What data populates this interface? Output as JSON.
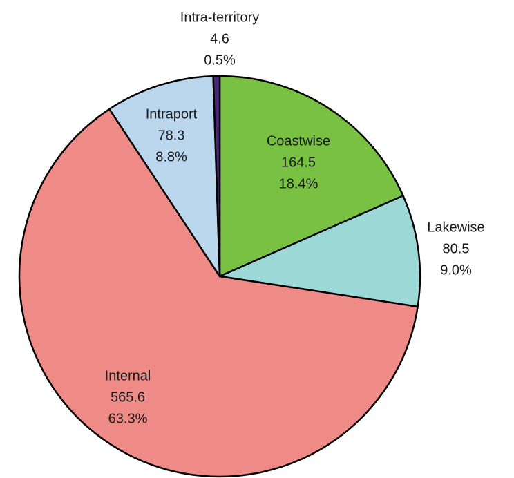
{
  "chart_data": {
    "type": "pie",
    "categories": [
      "Coastwise",
      "Lakewise",
      "Internal",
      "Intraport",
      "Intra-territory"
    ],
    "values": [
      164.5,
      80.5,
      565.6,
      78.3,
      4.6
    ],
    "percent_labels": [
      "18.4%",
      "9.0%",
      "63.3%",
      "8.8%",
      "0.5%"
    ],
    "colors": [
      "#79c142",
      "#9cd8d5",
      "#ee8b86",
      "#bad7ee",
      "#4a2a78"
    ],
    "start_angle": "top",
    "direction": "clockwise"
  }
}
